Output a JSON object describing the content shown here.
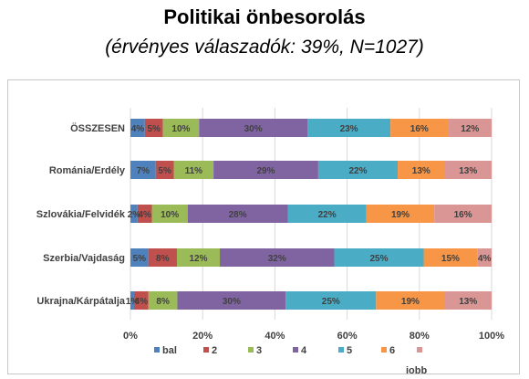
{
  "header": {
    "title": "Politikai önbesorolás",
    "subtitle": "(érvényes válaszadók: 39%, N=1027)"
  },
  "chart_data": {
    "type": "bar",
    "orientation": "horizontal",
    "stacked": "percent",
    "title": "Politikai önbesorolás",
    "subtitle": "(érvényes válaszadók: 39%, N=1027)",
    "categories": [
      "ÖSSZESEN",
      "Románia/Erdély",
      "Szlovákia/Felvidék",
      "Szerbia/Vajdaság",
      "Ukrajna/Kárpátalja"
    ],
    "series": [
      {
        "name": "bal",
        "color": "#4f81bd",
        "values": [
          4,
          7,
          2,
          5,
          1
        ],
        "labels": [
          "4%",
          "7%",
          "2%",
          "5%",
          "1%"
        ]
      },
      {
        "name": "2",
        "color": "#c0504d",
        "values": [
          5,
          5,
          4,
          8,
          4
        ],
        "labels": [
          "5%",
          "5%",
          "4%",
          "8%",
          "4%"
        ]
      },
      {
        "name": "3",
        "color": "#9bbb59",
        "values": [
          10,
          11,
          10,
          12,
          8
        ],
        "labels": [
          "10%",
          "11%",
          "10%",
          "12%",
          "8%"
        ]
      },
      {
        "name": "4",
        "color": "#8064a2",
        "values": [
          30,
          29,
          28,
          32,
          30
        ],
        "labels": [
          "30%",
          "29%",
          "28%",
          "32%",
          "30%"
        ]
      },
      {
        "name": "5",
        "color": "#4bacc6",
        "values": [
          23,
          22,
          22,
          25,
          25
        ],
        "labels": [
          "23%",
          "22%",
          "22%",
          "25%",
          "25%"
        ]
      },
      {
        "name": "6",
        "color": "#f79646",
        "values": [
          16,
          13,
          19,
          15,
          19
        ],
        "labels": [
          "16%",
          "13%",
          "19%",
          "15%",
          "19%"
        ]
      },
      {
        "name": "iobb",
        "color": "#d99694",
        "values": [
          12,
          13,
          16,
          4,
          13
        ],
        "labels": [
          "12%",
          "13%",
          "16%",
          "4%",
          "13%"
        ]
      }
    ],
    "xticks": [
      "0%",
      "20%",
      "40%",
      "60%",
      "80%",
      "100%"
    ],
    "xlim": [
      0,
      100
    ],
    "grid": "vertical",
    "legend_position": "bottom"
  }
}
